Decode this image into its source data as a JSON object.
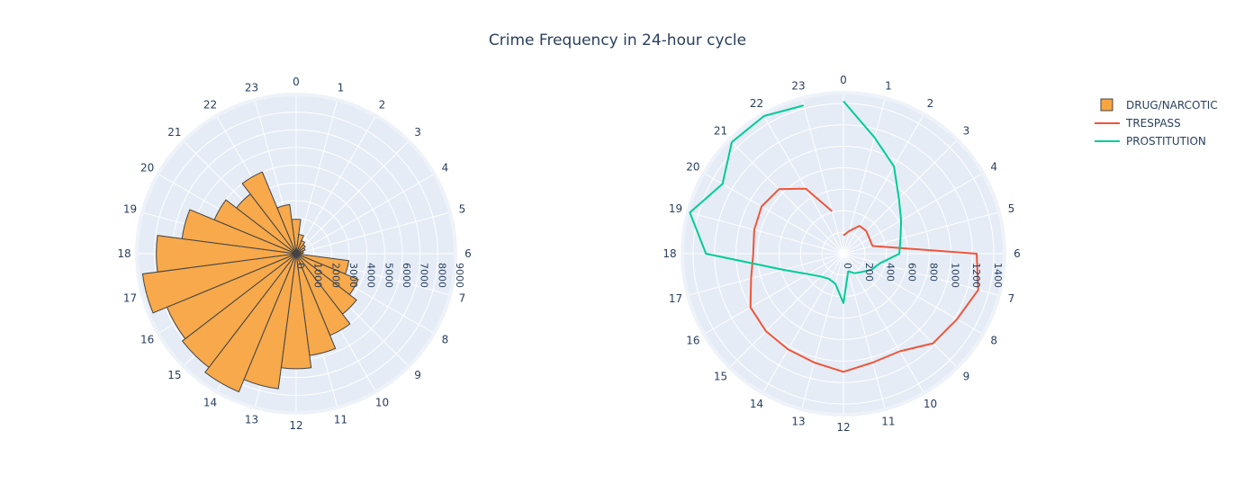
{
  "title": "Crime Frequency in 24-hour cycle",
  "colors": {
    "plot_bg": "#e5ecf6",
    "grid": "#ffffff",
    "drug": "#f8a541",
    "drug_outline": "#444444",
    "trespass": "#ef553b",
    "prostitution": "#00cc96"
  },
  "chart_data": [
    {
      "type": "bar",
      "polar": true,
      "angular_categories": [
        "0",
        "1",
        "2",
        "3",
        "4",
        "5",
        "6",
        "7",
        "8",
        "9",
        "10",
        "11",
        "12",
        "13",
        "14",
        "15",
        "16",
        "17",
        "18",
        "19",
        "20",
        "21",
        "22",
        "23"
      ],
      "direction": "clockwise",
      "rotation_start": "top",
      "radial_range": [
        0,
        9000
      ],
      "radial_ticks": [
        "0",
        "1000",
        "2000",
        "3000",
        "4000",
        "5000",
        "6000",
        "7000",
        "8000",
        "9000"
      ],
      "radial_axis_angle_hour": 6,
      "series": [
        {
          "name": "DRUG/NARCOTIC",
          "values": [
            1950,
            1100,
            800,
            650,
            550,
            420,
            350,
            3000,
            3800,
            4300,
            5000,
            5800,
            6500,
            7700,
            8450,
            8100,
            7900,
            8750,
            7900,
            6500,
            5000,
            4250,
            5000,
            2800
          ]
        }
      ]
    },
    {
      "type": "line",
      "polar": true,
      "angular_categories": [
        "0",
        "1",
        "2",
        "3",
        "4",
        "5",
        "6",
        "7",
        "8",
        "9",
        "10",
        "11",
        "12",
        "13",
        "14",
        "15",
        "16",
        "17",
        "18",
        "19",
        "20",
        "21",
        "22",
        "23"
      ],
      "direction": "clockwise",
      "rotation_start": "top",
      "radial_range": [
        0,
        1500
      ],
      "radial_ticks": [
        "0",
        "200",
        "400",
        "600",
        "800",
        "1000",
        "1200",
        "1400"
      ],
      "radial_axis_angle_hour": 6,
      "series": [
        {
          "name": "TRESPASS",
          "values": [
            170,
            220,
            300,
            300,
            280,
            280,
            1240,
            1300,
            1220,
            1180,
            1050,
            1050,
            1100,
            1050,
            1030,
            1020,
            1000,
            890,
            840,
            860,
            880,
            850,
            700,
            410
          ]
        },
        {
          "name": "PROSTITUTION",
          "values": [
            1420,
            1120,
            940,
            730,
            620,
            550,
            520,
            350,
            300,
            240,
            210,
            170,
            460,
            290,
            270,
            300,
            380,
            580,
            1280,
            1480,
            1300,
            1470,
            1480,
            1430
          ]
        }
      ]
    }
  ],
  "legend": {
    "items": [
      {
        "label": "DRUG/NARCOTIC",
        "kind": "bar"
      },
      {
        "label": "TRESPASS",
        "kind": "line"
      },
      {
        "label": "PROSTITUTION",
        "kind": "line"
      }
    ]
  }
}
